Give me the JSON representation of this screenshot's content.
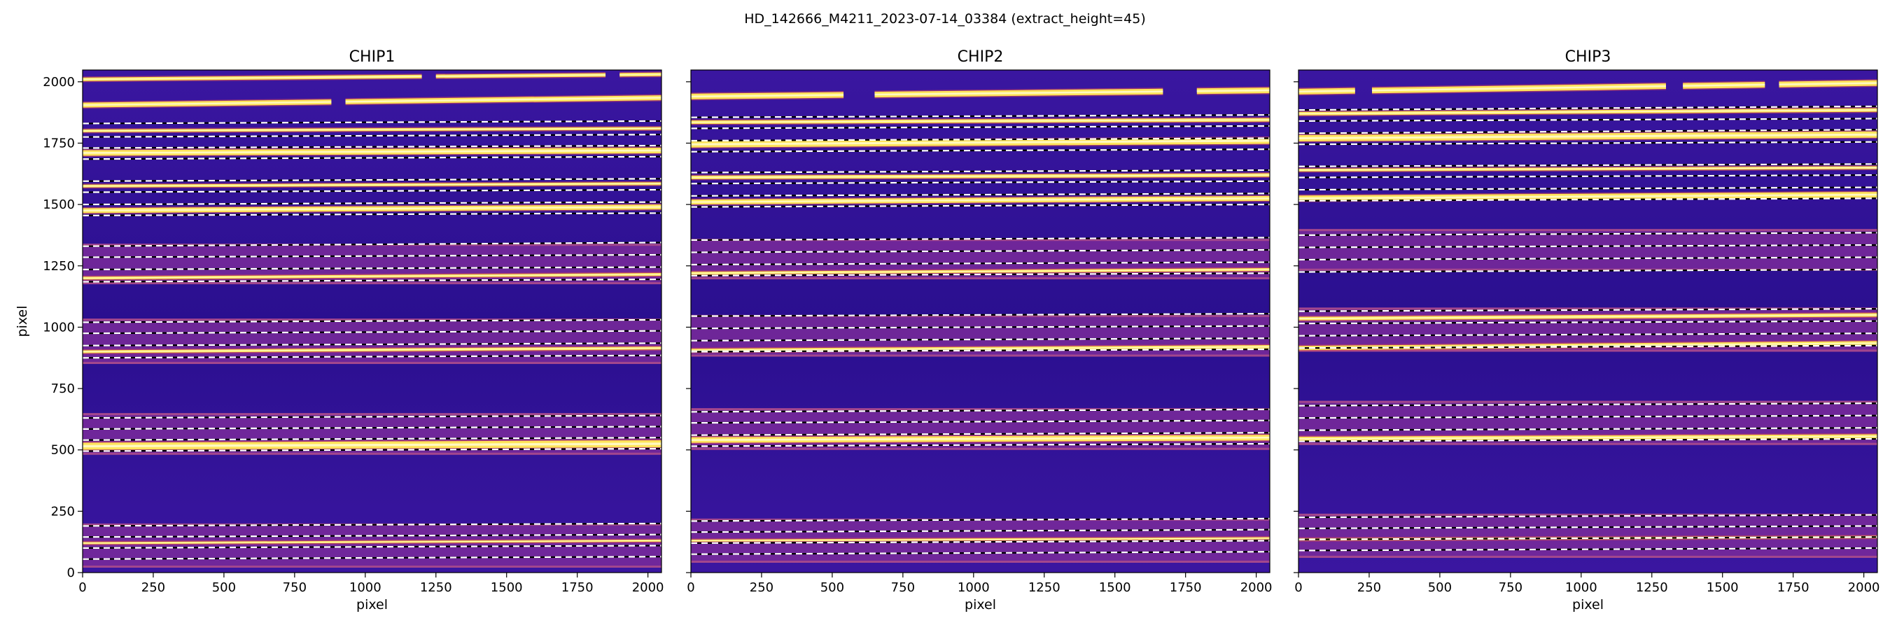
{
  "figure": {
    "title": "HD_142666_M4211_2023-07-14_03384  (extract_height=45)"
  },
  "colors": {
    "background": "#2a0f8f",
    "background_light": "#3a16a0",
    "order_band": "#7a2a9a",
    "trace_bright": "#ffe45a",
    "trace_core": "#fff9c0",
    "boundary_line": "#ffffff",
    "boundary_dash": "#000000"
  },
  "chart_data": [
    {
      "type": "heatmap",
      "panel": "CHIP1",
      "title": "CHIP1",
      "xlabel": "pixel",
      "ylabel": "pixel",
      "xlim": [
        0,
        2048
      ],
      "ylim": [
        0,
        2048
      ],
      "x_ticks": [
        0,
        250,
        500,
        750,
        1000,
        1250,
        1500,
        1750,
        2000
      ],
      "y_ticks": [
        0,
        250,
        500,
        750,
        1000,
        1250,
        1500,
        1750,
        2000
      ],
      "show_y_tick_labels": true,
      "order_bands": [
        [
          20,
          200
        ],
        [
          480,
          650
        ],
        [
          850,
          1035
        ],
        [
          1175,
          1340
        ]
      ],
      "traces": [
        {
          "y0": 2010,
          "y1": 2030,
          "width": 5,
          "gaps": [
            [
              1200,
              1250
            ],
            [
              1850,
              1900
            ]
          ]
        },
        {
          "y0": 1905,
          "y1": 1935,
          "width": 7,
          "gaps": [
            [
              880,
              930
            ]
          ]
        },
        {
          "y0": 1800,
          "y1": 1810,
          "width": 4,
          "gaps": []
        },
        {
          "y0": 1710,
          "y1": 1720,
          "width": 8,
          "gaps": []
        },
        {
          "y0": 1575,
          "y1": 1585,
          "width": 4,
          "gaps": []
        },
        {
          "y0": 1475,
          "y1": 1490,
          "width": 7,
          "gaps": []
        },
        {
          "y0": 1200,
          "y1": 1215,
          "width": 4,
          "gaps": []
        },
        {
          "y0": 900,
          "y1": 915,
          "width": 4,
          "gaps": []
        },
        {
          "y0": 515,
          "y1": 525,
          "width": 10,
          "gaps": []
        },
        {
          "y0": 120,
          "y1": 130,
          "width": 3,
          "gaps": []
        }
      ],
      "boundaries": [
        [
          1830,
          1840
        ],
        [
          1775,
          1785
        ],
        [
          1730,
          1740
        ],
        [
          1685,
          1695
        ],
        [
          1595,
          1605
        ],
        [
          1550,
          1560
        ],
        [
          1500,
          1510
        ],
        [
          1455,
          1465
        ],
        [
          1330,
          1345
        ],
        [
          1285,
          1295
        ],
        [
          1235,
          1245
        ],
        [
          1185,
          1195
        ],
        [
          1020,
          1030
        ],
        [
          975,
          985
        ],
        [
          925,
          935
        ],
        [
          875,
          885
        ],
        [
          630,
          640
        ],
        [
          585,
          595
        ],
        [
          540,
          550
        ],
        [
          495,
          505
        ],
        [
          190,
          200
        ],
        [
          145,
          155
        ],
        [
          100,
          110
        ],
        [
          55,
          65
        ]
      ]
    },
    {
      "type": "heatmap",
      "panel": "CHIP2",
      "title": "CHIP2",
      "xlabel": "pixel",
      "ylabel": "",
      "xlim": [
        0,
        2048
      ],
      "ylim": [
        0,
        2048
      ],
      "x_ticks": [
        0,
        250,
        500,
        750,
        1000,
        1250,
        1500,
        1750,
        2000
      ],
      "y_ticks": [
        0,
        250,
        500,
        750,
        1000,
        1250,
        1500,
        1750,
        2000
      ],
      "show_y_tick_labels": false,
      "order_bands": [
        [
          40,
          220
        ],
        [
          500,
          670
        ],
        [
          880,
          1050
        ],
        [
          1195,
          1360
        ]
      ],
      "traces": [
        {
          "y0": 1940,
          "y1": 1965,
          "width": 8,
          "gaps": [
            [
              540,
              650
            ],
            [
              1670,
              1790
            ]
          ]
        },
        {
          "y0": 1835,
          "y1": 1845,
          "width": 5,
          "gaps": []
        },
        {
          "y0": 1745,
          "y1": 1760,
          "width": 9,
          "gaps": []
        },
        {
          "y0": 1610,
          "y1": 1620,
          "width": 5,
          "gaps": []
        },
        {
          "y0": 1510,
          "y1": 1525,
          "width": 7,
          "gaps": []
        },
        {
          "y0": 1220,
          "y1": 1235,
          "width": 4,
          "gaps": []
        },
        {
          "y0": 905,
          "y1": 920,
          "width": 5,
          "gaps": []
        },
        {
          "y0": 540,
          "y1": 550,
          "width": 8,
          "gaps": []
        },
        {
          "y0": 130,
          "y1": 140,
          "width": 3,
          "gaps": []
        }
      ],
      "boundaries": [
        [
          1855,
          1865
        ],
        [
          1810,
          1820
        ],
        [
          1760,
          1770
        ],
        [
          1715,
          1725
        ],
        [
          1630,
          1640
        ],
        [
          1585,
          1595
        ],
        [
          1535,
          1545
        ],
        [
          1490,
          1500
        ],
        [
          1355,
          1365
        ],
        [
          1305,
          1315
        ],
        [
          1255,
          1265
        ],
        [
          1210,
          1220
        ],
        [
          1045,
          1055
        ],
        [
          995,
          1005
        ],
        [
          945,
          955
        ],
        [
          900,
          910
        ],
        [
          655,
          665
        ],
        [
          610,
          620
        ],
        [
          560,
          570
        ],
        [
          515,
          525
        ],
        [
          210,
          220
        ],
        [
          165,
          175
        ],
        [
          120,
          130
        ],
        [
          75,
          85
        ]
      ]
    },
    {
      "type": "heatmap",
      "panel": "CHIP3",
      "title": "CHIP3",
      "xlabel": "pixel",
      "ylabel": "",
      "xlim": [
        0,
        2048
      ],
      "ylim": [
        0,
        2048
      ],
      "x_ticks": [
        0,
        250,
        500,
        750,
        1000,
        1250,
        1500,
        1750,
        2000
      ],
      "y_ticks": [
        0,
        250,
        500,
        750,
        1000,
        1250,
        1500,
        1750,
        2000
      ],
      "show_y_tick_labels": false,
      "order_bands": [
        [
          60,
          240
        ],
        [
          520,
          700
        ],
        [
          900,
          1080
        ],
        [
          1230,
          1400
        ]
      ],
      "traces": [
        {
          "y0": 1960,
          "y1": 1995,
          "width": 8,
          "gaps": [
            [
              200,
              260
            ],
            [
              1300,
              1360
            ],
            [
              1650,
              1700
            ]
          ]
        },
        {
          "y0": 1870,
          "y1": 1885,
          "width": 5,
          "gaps": []
        },
        {
          "y0": 1770,
          "y1": 1785,
          "width": 9,
          "gaps": []
        },
        {
          "y0": 1640,
          "y1": 1650,
          "width": 4,
          "gaps": []
        },
        {
          "y0": 1525,
          "y1": 1540,
          "width": 8,
          "gaps": []
        },
        {
          "y0": 1035,
          "y1": 1050,
          "width": 5,
          "gaps": []
        },
        {
          "y0": 915,
          "y1": 935,
          "width": 6,
          "gaps": []
        },
        {
          "y0": 545,
          "y1": 555,
          "width": 6,
          "gaps": []
        },
        {
          "y0": 135,
          "y1": 145,
          "width": 3,
          "gaps": []
        }
      ],
      "boundaries": [
        [
          1885,
          1900
        ],
        [
          1840,
          1850
        ],
        [
          1790,
          1805
        ],
        [
          1745,
          1755
        ],
        [
          1655,
          1665
        ],
        [
          1610,
          1620
        ],
        [
          1560,
          1570
        ],
        [
          1515,
          1525
        ],
        [
          1375,
          1385
        ],
        [
          1325,
          1335
        ],
        [
          1275,
          1285
        ],
        [
          1225,
          1235
        ],
        [
          1065,
          1075
        ],
        [
          1015,
          1025
        ],
        [
          965,
          975
        ],
        [
          915,
          925
        ],
        [
          680,
          690
        ],
        [
          630,
          640
        ],
        [
          580,
          590
        ],
        [
          535,
          545
        ],
        [
          225,
          235
        ],
        [
          180,
          190
        ],
        [
          135,
          145
        ],
        [
          90,
          100
        ]
      ]
    }
  ]
}
